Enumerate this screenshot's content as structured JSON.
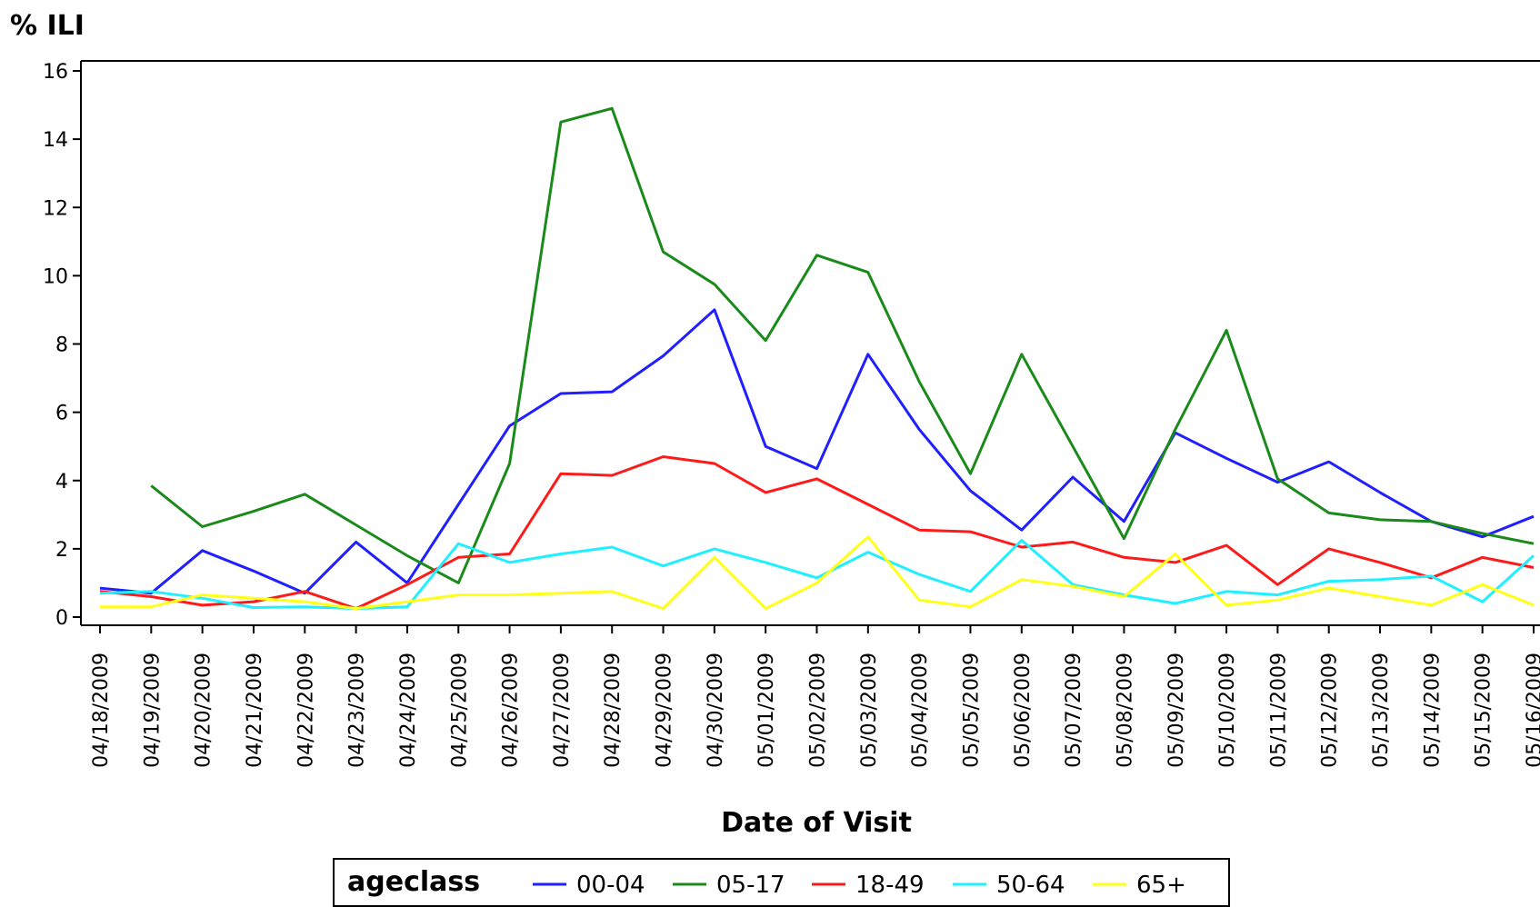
{
  "chart_data": {
    "type": "line",
    "y_label": "% ILI",
    "x_label": "Date of Visit",
    "legend_title": "ageclass",
    "categories": [
      "04/18/2009",
      "04/19/2009",
      "04/20/2009",
      "04/21/2009",
      "04/22/2009",
      "04/23/2009",
      "04/24/2009",
      "04/25/2009",
      "04/26/2009",
      "04/27/2009",
      "04/28/2009",
      "04/29/2009",
      "04/30/2009",
      "05/01/2009",
      "05/02/2009",
      "05/03/2009",
      "05/04/2009",
      "05/05/2009",
      "05/06/2009",
      "05/07/2009",
      "05/08/2009",
      "05/09/2009",
      "05/10/2009",
      "05/11/2009",
      "05/12/2009",
      "05/13/2009",
      "05/14/2009",
      "05/15/2009",
      "05/16/2009"
    ],
    "series": [
      {
        "name": "00-04",
        "color": "#1f1fff",
        "values": [
          0.85,
          0.7,
          1.95,
          1.35,
          0.7,
          2.2,
          1.0,
          3.3,
          5.6,
          6.55,
          6.6,
          7.65,
          9.0,
          5.0,
          4.35,
          7.7,
          5.5,
          3.7,
          2.55,
          4.1,
          2.8,
          5.4,
          4.65,
          3.95,
          4.55,
          3.65,
          2.8,
          2.35,
          2.95
        ]
      },
      {
        "name": "05-17",
        "color": "#1a8a1a",
        "values": [
          null,
          3.85,
          2.65,
          3.1,
          3.6,
          2.7,
          1.8,
          1.0,
          4.5,
          14.5,
          14.9,
          10.7,
          9.75,
          8.1,
          10.6,
          10.1,
          6.9,
          4.2,
          7.7,
          5.0,
          2.3,
          5.5,
          8.4,
          4.05,
          3.05,
          2.85,
          2.8,
          2.45,
          2.15
        ]
      },
      {
        "name": "18-49",
        "color": "#ff1a1a",
        "values": [
          0.75,
          0.6,
          0.35,
          0.45,
          0.75,
          0.25,
          0.95,
          1.75,
          1.85,
          4.2,
          4.15,
          4.7,
          4.5,
          3.65,
          4.05,
          3.3,
          2.55,
          2.5,
          2.05,
          2.2,
          1.75,
          1.6,
          2.1,
          0.95,
          2.0,
          1.6,
          1.15,
          1.75,
          1.45
        ]
      },
      {
        "name": "50-64",
        "color": "#1ff0ff",
        "values": [
          0.7,
          0.75,
          0.55,
          0.28,
          0.3,
          0.25,
          0.3,
          2.15,
          1.6,
          1.85,
          2.05,
          1.5,
          2.0,
          1.6,
          1.15,
          1.9,
          1.25,
          0.75,
          2.25,
          0.95,
          0.65,
          0.4,
          0.75,
          0.65,
          1.05,
          1.1,
          1.2,
          0.45,
          1.8
        ]
      },
      {
        "name": "65+",
        "color": "#ffff1a",
        "values": [
          0.3,
          0.3,
          0.65,
          0.55,
          0.45,
          0.25,
          0.45,
          0.65,
          0.65,
          0.7,
          0.75,
          0.25,
          1.75,
          0.25,
          1.0,
          2.35,
          0.5,
          0.3,
          1.1,
          0.9,
          0.6,
          1.85,
          0.35,
          0.5,
          0.85,
          0.6,
          0.35,
          0.95,
          0.35
        ]
      }
    ],
    "ylim": [
      0,
      16
    ],
    "yticks": [
      0,
      2,
      4,
      6,
      8,
      10,
      12,
      14,
      16
    ]
  }
}
